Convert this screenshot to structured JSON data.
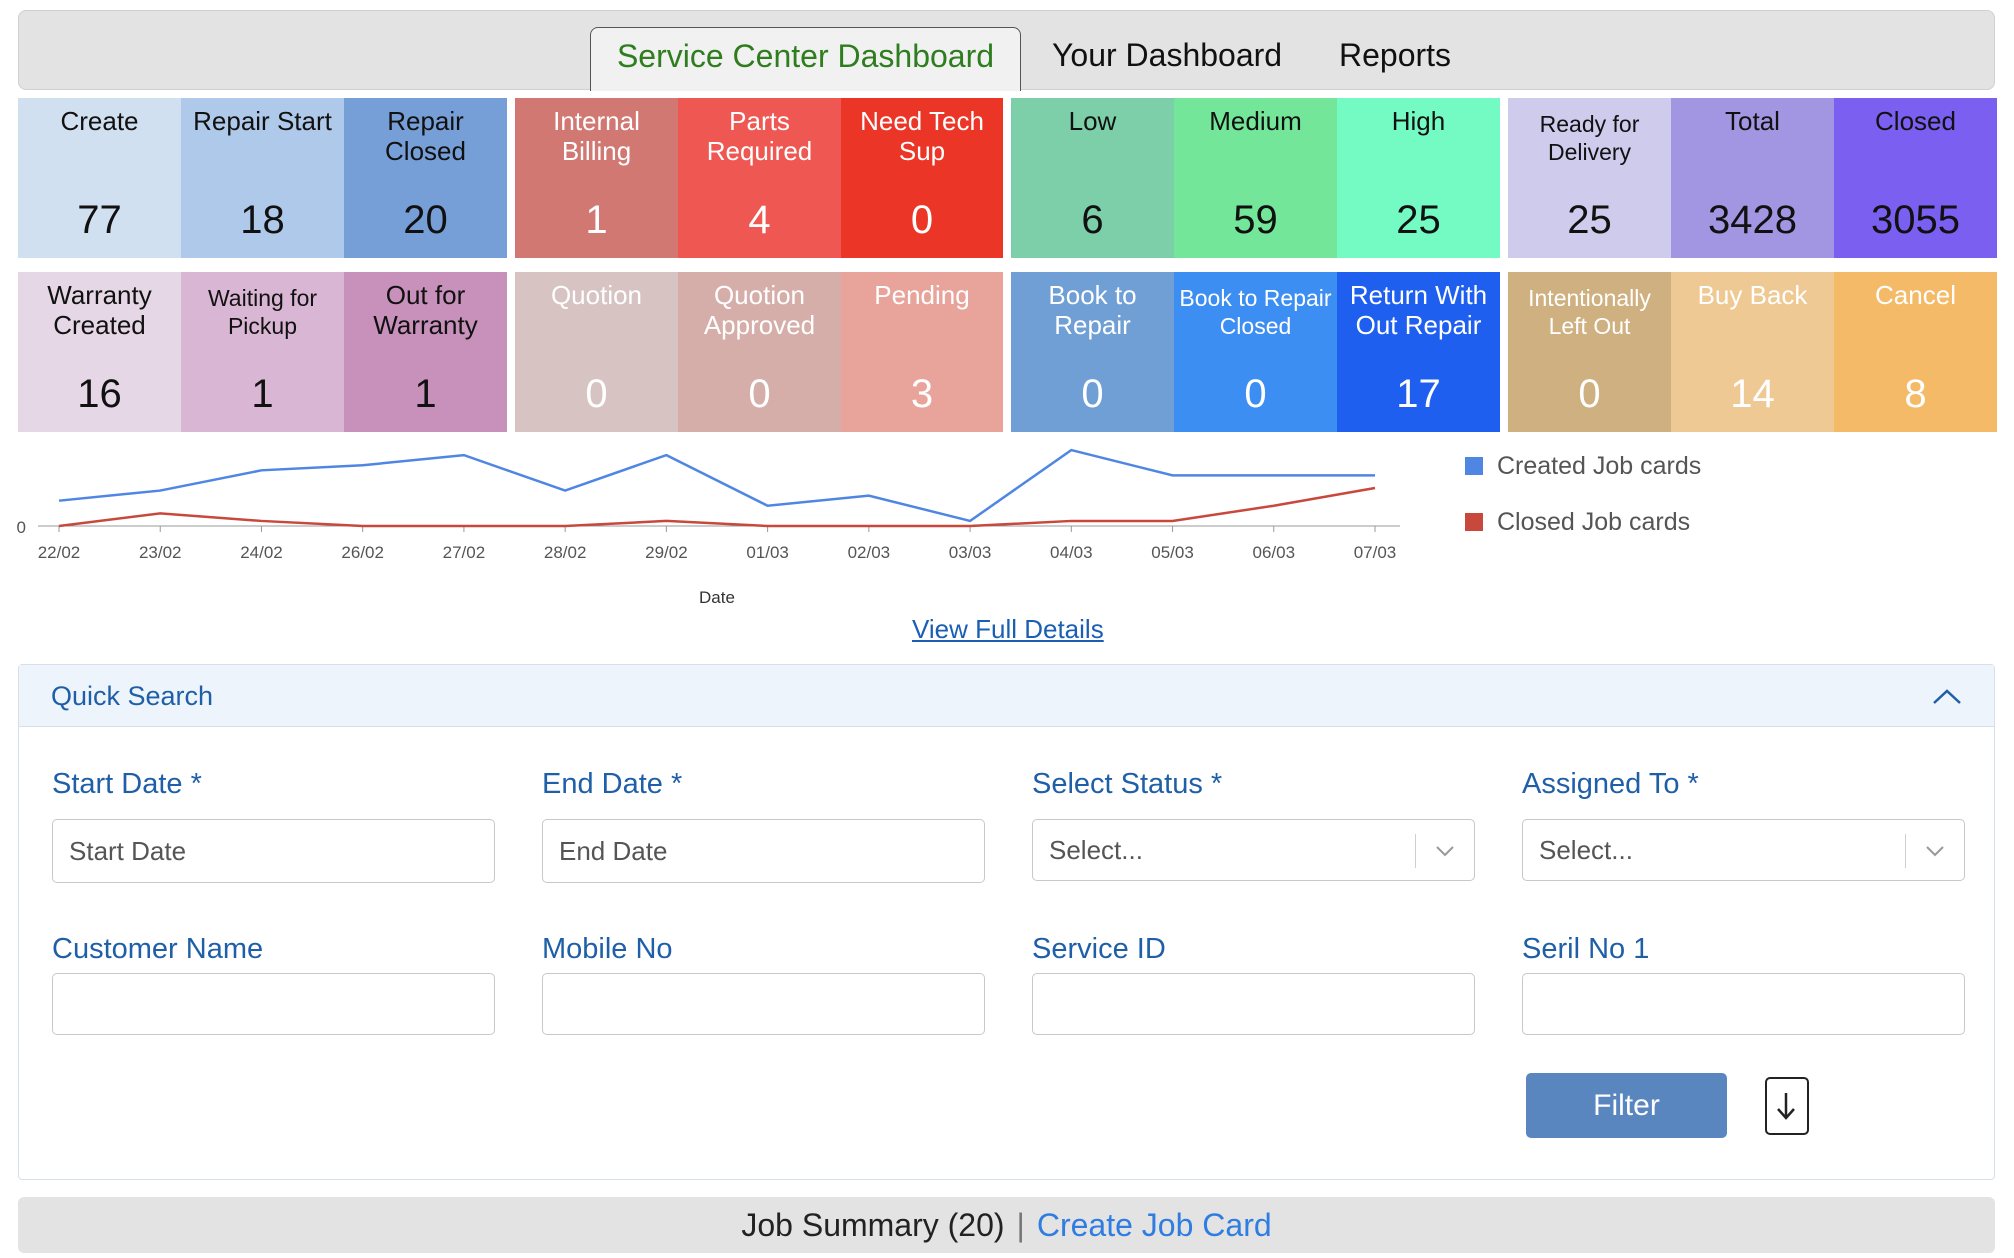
{
  "tabs": [
    {
      "label": "Service Center Dashboard",
      "active": true
    },
    {
      "label": "Your Dashboard",
      "active": false
    },
    {
      "label": "Reports",
      "active": false
    }
  ],
  "tiles": [
    {
      "label": "Create",
      "value": "77",
      "bg": "#d1e0f0",
      "light": false
    },
    {
      "label": "Repair Start",
      "value": "18",
      "bg": "#afc9ea",
      "light": false
    },
    {
      "label": "Repair Closed",
      "value": "20",
      "bg": "#769fd8",
      "light": false
    },
    {
      "label": "Internal Billing",
      "value": "1",
      "bg": "#d17873",
      "light": true
    },
    {
      "label": "Parts Required",
      "value": "4",
      "bg": "#ef5752",
      "light": true
    },
    {
      "label": "Need Tech Sup",
      "value": "0",
      "bg": "#eb3527",
      "light": true
    },
    {
      "label": "Low",
      "value": "6",
      "bg": "#7ccfa8",
      "light": false
    },
    {
      "label": "Medium",
      "value": "59",
      "bg": "#73e699",
      "light": false
    },
    {
      "label": "High",
      "value": "25",
      "bg": "#74fbc4",
      "light": false
    },
    {
      "label": "Ready for Delivery",
      "value": "25",
      "bg": "#cfcbed",
      "light": false,
      "small": true
    },
    {
      "label": "Total",
      "value": "3428",
      "bg": "#a296e3",
      "light": false
    },
    {
      "label": "Closed",
      "value": "3055",
      "bg": "#7b5ff0",
      "light": false
    },
    {
      "label": "Warranty Created",
      "value": "16",
      "bg": "#e6d7e7",
      "light": false
    },
    {
      "label": "Waiting for Pickup",
      "value": "1",
      "bg": "#d9b6d4",
      "light": false,
      "small": true
    },
    {
      "label": "Out for Warranty",
      "value": "1",
      "bg": "#c791bb",
      "light": false
    },
    {
      "label": "Quotion",
      "value": "0",
      "bg": "#d6c3c2",
      "light": true
    },
    {
      "label": "Quotion Approved",
      "value": "0",
      "bg": "#d5aeaa",
      "light": true
    },
    {
      "label": "Pending",
      "value": "3",
      "bg": "#e8a39a",
      "light": true
    },
    {
      "label": "Book to Repair",
      "value": "0",
      "bg": "#6f9fd4",
      "light": true
    },
    {
      "label": "Book to Repair Closed",
      "value": "0",
      "bg": "#3d8ef2",
      "light": true,
      "small": true
    },
    {
      "label": "Return With Out Repair",
      "value": "17",
      "bg": "#1f5ff0",
      "light": true
    },
    {
      "label": "Intentionally Left Out",
      "value": "0",
      "bg": "#cfb080",
      "light": true,
      "small": true
    },
    {
      "label": "Buy Back",
      "value": "14",
      "bg": "#efc993",
      "light": true
    },
    {
      "label": "Cancel",
      "value": "8",
      "bg": "#f4ba67",
      "light": true
    }
  ],
  "chart_data": {
    "type": "line",
    "categories": [
      "22/02",
      "23/02",
      "24/02",
      "26/02",
      "27/02",
      "28/02",
      "29/02",
      "01/03",
      "02/03",
      "03/03",
      "04/03",
      "05/03",
      "06/03",
      "07/03"
    ],
    "series": [
      {
        "name": "Created Job cards",
        "color": "#4f86e3",
        "values": [
          5,
          7,
          11,
          12,
          14,
          7,
          14,
          4,
          6,
          1,
          15,
          10,
          10,
          10
        ]
      },
      {
        "name": "Closed Job cards",
        "color": "#c9483c",
        "values": [
          0,
          2.5,
          1,
          0,
          0,
          0,
          1,
          0,
          0,
          0,
          1,
          1,
          4,
          7.5
        ]
      }
    ],
    "y_tick_label": "0",
    "xlabel": "Date",
    "ylim": [
      0,
      16
    ]
  },
  "legend": [
    {
      "label": "Created Job cards",
      "color": "#4f86e3"
    },
    {
      "label": "Closed Job cards",
      "color": "#c9483c"
    }
  ],
  "view_link": "View Full Details",
  "quick_search": {
    "title": "Quick Search",
    "start_date": {
      "label": "Start Date *",
      "placeholder": "Start Date"
    },
    "end_date": {
      "label": "End Date *",
      "placeholder": "End Date"
    },
    "status": {
      "label": "Select Status *",
      "value": "Select..."
    },
    "assigned": {
      "label": "Assigned To *",
      "value": "Select..."
    },
    "customer": {
      "label": "Customer Name",
      "value": ""
    },
    "mobile": {
      "label": "Mobile No",
      "value": ""
    },
    "service_id": {
      "label": "Service ID",
      "value": ""
    },
    "serial": {
      "label": "Seril No 1",
      "value": ""
    },
    "filter_label": "Filter"
  },
  "footer": {
    "summary": "Job Summary (20)",
    "separator": "|",
    "create": "Create Job Card"
  }
}
